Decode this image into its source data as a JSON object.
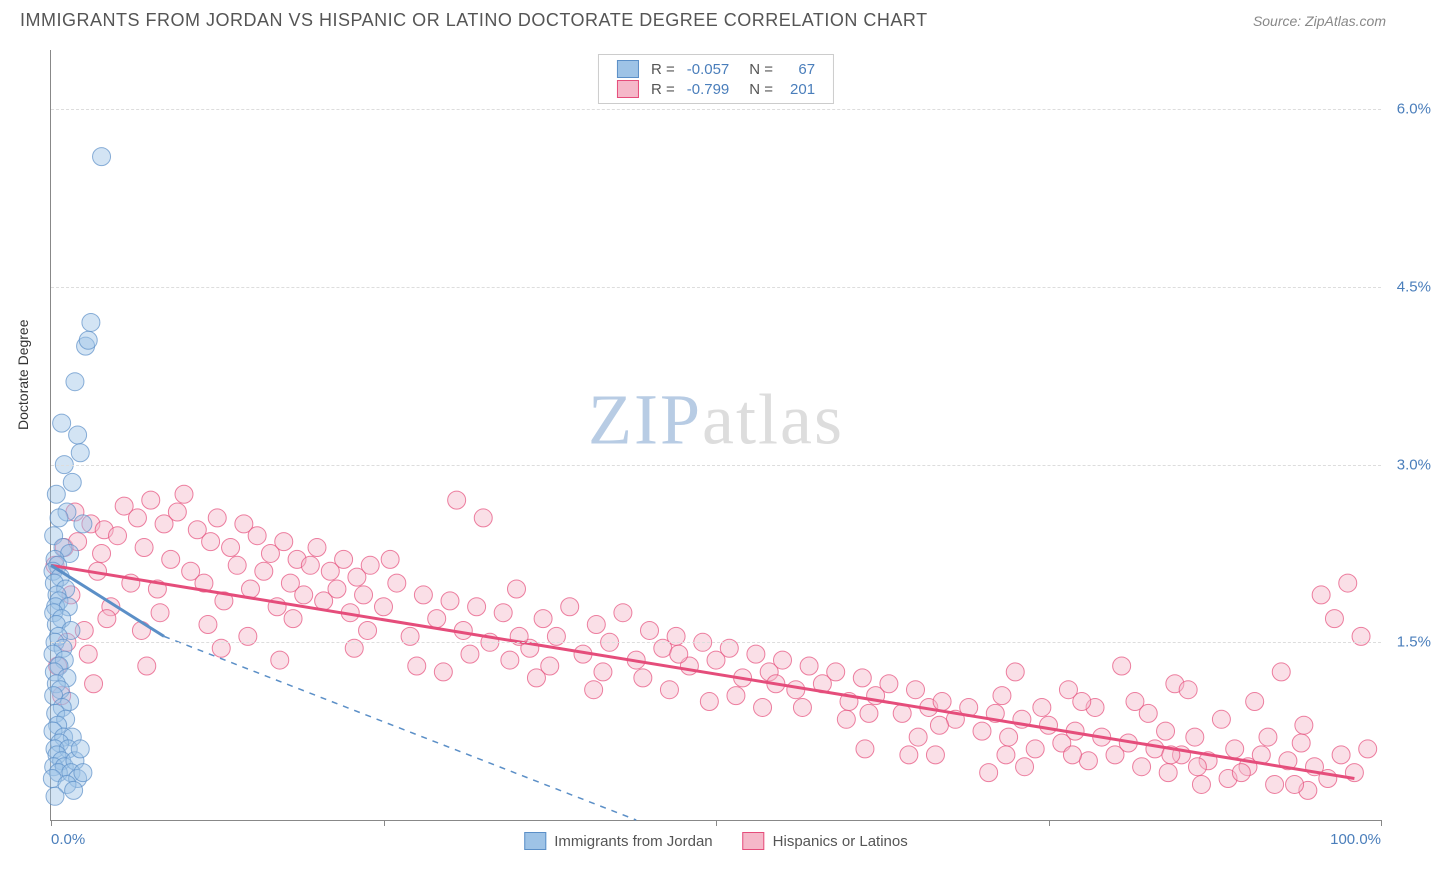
{
  "title": "IMMIGRANTS FROM JORDAN VS HISPANIC OR LATINO DOCTORATE DEGREE CORRELATION CHART",
  "source_label": "Source:",
  "source_name": "ZipAtlas.com",
  "y_axis_label": "Doctorate Degree",
  "watermark_a": "ZIP",
  "watermark_b": "atlas",
  "chart": {
    "type": "scatter",
    "xlim": [
      0,
      100
    ],
    "ylim": [
      0,
      6.5
    ],
    "x_ticks": [
      0,
      25,
      50,
      75,
      100
    ],
    "x_tick_labels": [
      "0.0%",
      "",
      "",
      "",
      "100.0%"
    ],
    "y_gridlines": [
      1.5,
      3.0,
      4.5,
      6.0
    ],
    "y_tick_labels": [
      "1.5%",
      "3.0%",
      "4.5%",
      "6.0%"
    ],
    "background_color": "#ffffff",
    "grid_color": "#dddddd",
    "axis_color": "#888888",
    "tick_label_color": "#4a7ebb",
    "marker_radius": 9,
    "marker_opacity": 0.45,
    "series": [
      {
        "name": "Immigrants from Jordan",
        "color_fill": "#9ec3e6",
        "color_stroke": "#5b8fc7",
        "R": "-0.057",
        "N": "67",
        "trend": {
          "x1": 0,
          "y1": 2.15,
          "x2": 8.5,
          "y2": 1.55,
          "solid_until_x": 8.5,
          "dash_to_x": 44,
          "dash_to_y": 0
        },
        "points": [
          [
            3.8,
            5.6
          ],
          [
            3.0,
            4.2
          ],
          [
            2.6,
            4.0
          ],
          [
            2.8,
            4.05
          ],
          [
            1.8,
            3.7
          ],
          [
            0.8,
            3.35
          ],
          [
            2.0,
            3.25
          ],
          [
            2.2,
            3.1
          ],
          [
            1.0,
            3.0
          ],
          [
            1.6,
            2.85
          ],
          [
            0.4,
            2.75
          ],
          [
            1.2,
            2.6
          ],
          [
            0.6,
            2.55
          ],
          [
            2.4,
            2.5
          ],
          [
            0.2,
            2.4
          ],
          [
            0.9,
            2.3
          ],
          [
            1.4,
            2.25
          ],
          [
            0.3,
            2.2
          ],
          [
            0.5,
            2.15
          ],
          [
            0.15,
            2.1
          ],
          [
            0.7,
            2.05
          ],
          [
            0.25,
            2.0
          ],
          [
            1.1,
            1.95
          ],
          [
            0.45,
            1.9
          ],
          [
            0.6,
            1.85
          ],
          [
            0.35,
            1.8
          ],
          [
            1.3,
            1.8
          ],
          [
            0.2,
            1.75
          ],
          [
            0.8,
            1.7
          ],
          [
            0.4,
            1.65
          ],
          [
            1.5,
            1.6
          ],
          [
            0.55,
            1.55
          ],
          [
            0.3,
            1.5
          ],
          [
            0.9,
            1.45
          ],
          [
            0.15,
            1.4
          ],
          [
            1.0,
            1.35
          ],
          [
            0.6,
            1.3
          ],
          [
            0.25,
            1.25
          ],
          [
            1.2,
            1.2
          ],
          [
            0.4,
            1.15
          ],
          [
            0.7,
            1.1
          ],
          [
            0.2,
            1.05
          ],
          [
            1.4,
            1.0
          ],
          [
            0.85,
            0.95
          ],
          [
            0.35,
            0.9
          ],
          [
            1.1,
            0.85
          ],
          [
            0.5,
            0.8
          ],
          [
            0.15,
            0.75
          ],
          [
            0.95,
            0.7
          ],
          [
            1.6,
            0.7
          ],
          [
            0.65,
            0.65
          ],
          [
            0.3,
            0.6
          ],
          [
            1.3,
            0.6
          ],
          [
            0.45,
            0.55
          ],
          [
            0.8,
            0.5
          ],
          [
            0.2,
            0.45
          ],
          [
            1.0,
            0.45
          ],
          [
            1.8,
            0.5
          ],
          [
            2.2,
            0.6
          ],
          [
            0.55,
            0.4
          ],
          [
            1.5,
            0.4
          ],
          [
            0.1,
            0.35
          ],
          [
            2.0,
            0.35
          ],
          [
            1.2,
            0.3
          ],
          [
            2.4,
            0.4
          ],
          [
            1.7,
            0.25
          ],
          [
            0.3,
            0.2
          ]
        ]
      },
      {
        "name": "Hispanics or Latinos",
        "color_fill": "#f5b8c9",
        "color_stroke": "#e54d7b",
        "R": "-0.799",
        "N": "201",
        "trend": {
          "x1": 0,
          "y1": 2.15,
          "x2": 98,
          "y2": 0.35
        },
        "points": [
          [
            0.5,
            1.3
          ],
          [
            1.0,
            2.3
          ],
          [
            1.5,
            1.9
          ],
          [
            2.0,
            2.35
          ],
          [
            2.5,
            1.6
          ],
          [
            3.0,
            2.5
          ],
          [
            3.5,
            2.1
          ],
          [
            4.0,
            2.45
          ],
          [
            4.5,
            1.8
          ],
          [
            5.0,
            2.4
          ],
          [
            5.5,
            2.65
          ],
          [
            6.0,
            2.0
          ],
          [
            6.5,
            2.55
          ],
          [
            7.0,
            2.3
          ],
          [
            7.5,
            2.7
          ],
          [
            8.0,
            1.95
          ],
          [
            8.5,
            2.5
          ],
          [
            9.0,
            2.2
          ],
          [
            9.5,
            2.6
          ],
          [
            10,
            2.75
          ],
          [
            10.5,
            2.1
          ],
          [
            11,
            2.45
          ],
          [
            11.5,
            2.0
          ],
          [
            12,
            2.35
          ],
          [
            12.5,
            2.55
          ],
          [
            13,
            1.85
          ],
          [
            13.5,
            2.3
          ],
          [
            14,
            2.15
          ],
          [
            14.5,
            2.5
          ],
          [
            15,
            1.95
          ],
          [
            15.5,
            2.4
          ],
          [
            16,
            2.1
          ],
          [
            16.5,
            2.25
          ],
          [
            17,
            1.8
          ],
          [
            17.5,
            2.35
          ],
          [
            18,
            2.0
          ],
          [
            18.5,
            2.2
          ],
          [
            19,
            1.9
          ],
          [
            19.5,
            2.15
          ],
          [
            20,
            2.3
          ],
          [
            20.5,
            1.85
          ],
          [
            21,
            2.1
          ],
          [
            21.5,
            1.95
          ],
          [
            22,
            2.2
          ],
          [
            22.5,
            1.75
          ],
          [
            23,
            2.05
          ],
          [
            23.5,
            1.9
          ],
          [
            24,
            2.15
          ],
          [
            25,
            1.8
          ],
          [
            26,
            2.0
          ],
          [
            27,
            1.55
          ],
          [
            28,
            1.9
          ],
          [
            29,
            1.7
          ],
          [
            30,
            1.85
          ],
          [
            30.5,
            2.7
          ],
          [
            31,
            1.6
          ],
          [
            32,
            1.8
          ],
          [
            32.5,
            2.55
          ],
          [
            33,
            1.5
          ],
          [
            34,
            1.75
          ],
          [
            35,
            1.95
          ],
          [
            36,
            1.45
          ],
          [
            37,
            1.7
          ],
          [
            38,
            1.55
          ],
          [
            39,
            1.8
          ],
          [
            40,
            1.4
          ],
          [
            41,
            1.65
          ],
          [
            42,
            1.5
          ],
          [
            43,
            1.75
          ],
          [
            44,
            1.35
          ],
          [
            45,
            1.6
          ],
          [
            46,
            1.45
          ],
          [
            47,
            1.55
          ],
          [
            48,
            1.3
          ],
          [
            49,
            1.5
          ],
          [
            50,
            1.35
          ],
          [
            51,
            1.45
          ],
          [
            52,
            1.2
          ],
          [
            53,
            1.4
          ],
          [
            54,
            1.25
          ],
          [
            55,
            1.35
          ],
          [
            56,
            1.1
          ],
          [
            57,
            1.3
          ],
          [
            58,
            1.15
          ],
          [
            59,
            1.25
          ],
          [
            60,
            1.0
          ],
          [
            61,
            1.2
          ],
          [
            62,
            1.05
          ],
          [
            63,
            1.15
          ],
          [
            64,
            0.9
          ],
          [
            65,
            1.1
          ],
          [
            66,
            0.95
          ],
          [
            66.5,
            0.55
          ],
          [
            67,
            1.0
          ],
          [
            68,
            0.85
          ],
          [
            69,
            0.95
          ],
          [
            70,
            0.75
          ],
          [
            70.5,
            0.4
          ],
          [
            71,
            0.9
          ],
          [
            72,
            0.7
          ],
          [
            72.5,
            1.25
          ],
          [
            73,
            0.85
          ],
          [
            74,
            0.6
          ],
          [
            75,
            0.8
          ],
          [
            76,
            0.65
          ],
          [
            76.5,
            1.1
          ],
          [
            77,
            0.75
          ],
          [
            78,
            0.5
          ],
          [
            78.5,
            0.95
          ],
          [
            79,
            0.7
          ],
          [
            80,
            0.55
          ],
          [
            80.5,
            1.3
          ],
          [
            81,
            0.65
          ],
          [
            82,
            0.45
          ],
          [
            82.5,
            0.9
          ],
          [
            83,
            0.6
          ],
          [
            84,
            0.4
          ],
          [
            84.5,
            1.15
          ],
          [
            85,
            0.55
          ],
          [
            86,
            0.7
          ],
          [
            86.5,
            0.3
          ],
          [
            87,
            0.5
          ],
          [
            88,
            0.85
          ],
          [
            88.5,
            0.35
          ],
          [
            89,
            0.6
          ],
          [
            90,
            0.45
          ],
          [
            90.5,
            1.0
          ],
          [
            91,
            0.55
          ],
          [
            92,
            0.3
          ],
          [
            92.5,
            1.25
          ],
          [
            93,
            0.5
          ],
          [
            94,
            0.65
          ],
          [
            94.5,
            0.25
          ],
          [
            95,
            0.45
          ],
          [
            95.5,
            1.9
          ],
          [
            96,
            0.35
          ],
          [
            96.5,
            1.7
          ],
          [
            97,
            0.55
          ],
          [
            97.5,
            2.0
          ],
          [
            98,
            0.4
          ],
          [
            98.5,
            1.55
          ],
          [
            99,
            0.6
          ],
          [
            1.2,
            1.5
          ],
          [
            2.8,
            1.4
          ],
          [
            4.2,
            1.7
          ],
          [
            6.8,
            1.6
          ],
          [
            8.2,
            1.75
          ],
          [
            11.8,
            1.65
          ],
          [
            14.8,
            1.55
          ],
          [
            18.2,
            1.7
          ],
          [
            22.8,
            1.45
          ],
          [
            27.5,
            1.3
          ],
          [
            31.5,
            1.4
          ],
          [
            36.5,
            1.2
          ],
          [
            41.5,
            1.25
          ],
          [
            46.5,
            1.1
          ],
          [
            51.5,
            1.05
          ],
          [
            56.5,
            0.95
          ],
          [
            61.5,
            0.9
          ],
          [
            66.8,
            0.8
          ],
          [
            71.5,
            1.05
          ],
          [
            76.8,
            0.55
          ],
          [
            81.5,
            1.0
          ],
          [
            86.2,
            0.45
          ],
          [
            91.5,
            0.7
          ],
          [
            0.8,
            1.05
          ],
          [
            3.2,
            1.15
          ],
          [
            7.2,
            1.3
          ],
          [
            12.8,
            1.45
          ],
          [
            17.2,
            1.35
          ],
          [
            23.8,
            1.6
          ],
          [
            29.5,
            1.25
          ],
          [
            35.2,
            1.55
          ],
          [
            40.8,
            1.1
          ],
          [
            47.2,
            1.4
          ],
          [
            53.5,
            0.95
          ],
          [
            59.8,
            0.85
          ],
          [
            65.2,
            0.7
          ],
          [
            71.8,
            0.55
          ],
          [
            77.5,
            1.0
          ],
          [
            83.8,
            0.75
          ],
          [
            89.5,
            0.4
          ],
          [
            94.2,
            0.8
          ],
          [
            34.5,
            1.35
          ],
          [
            44.5,
            1.2
          ],
          [
            54.5,
            1.15
          ],
          [
            64.5,
            0.55
          ],
          [
            74.5,
            0.95
          ],
          [
            84.2,
            0.55
          ],
          [
            93.5,
            0.3
          ],
          [
            25.5,
            2.2
          ],
          [
            37.5,
            1.3
          ],
          [
            49.5,
            1.0
          ],
          [
            61.2,
            0.6
          ],
          [
            73.2,
            0.45
          ],
          [
            85.5,
            1.1
          ],
          [
            0.3,
            2.15
          ],
          [
            1.8,
            2.6
          ],
          [
            3.8,
            2.25
          ]
        ]
      }
    ]
  },
  "legend_top": {
    "r_label": "R =",
    "n_label": "N ="
  },
  "legend_bottom": [
    {
      "label": "Immigrants from Jordan",
      "fill": "#9ec3e6",
      "stroke": "#5b8fc7"
    },
    {
      "label": "Hispanics or Latinos",
      "fill": "#f5b8c9",
      "stroke": "#e54d7b"
    }
  ]
}
